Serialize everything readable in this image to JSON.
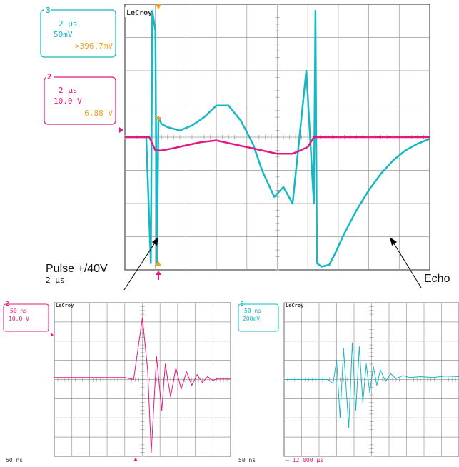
{
  "colors": {
    "cyan": "#15b8c4",
    "magenta": "#e3197e",
    "orange": "#f2a11c",
    "grid": "#9a9a9a",
    "frame": "#4a4a4a"
  },
  "scope": {
    "brand": "LeCroy",
    "ch3_box": {
      "channel": "3",
      "timebase": "2 μs",
      "vdiv": "50mV",
      "value": ">396.7mV"
    },
    "ch2_box": {
      "channel": "2",
      "timebase": "2 μs",
      "vdiv": "10.0 V",
      "value": "6.88 V"
    },
    "timebase_label": "2 μs"
  },
  "annotations": {
    "pulse": "Pulse +/40V",
    "echo": "Echo"
  },
  "zoom_left": {
    "brand": "LeCroy",
    "channel": "2",
    "timebase": "50 ns",
    "vdiv": "10.0 V",
    "bottom_label": "50 ns"
  },
  "zoom_right": {
    "brand": "LeCroy",
    "channel": "3",
    "timebase": "50 ns",
    "vdiv": "200mV",
    "bottom_label": "50 ns",
    "offset_label": "⟵ 12.000 μs"
  },
  "chart_data": [
    {
      "type": "line",
      "xlim": [
        -1,
        9
      ],
      "ylim": [
        -4,
        4
      ],
      "series": [
        {
          "color": "#15b8c4",
          "x": [
            -1.0,
            -0.3,
            -0.15,
            -0.1,
            0.0,
            0.05,
            0.1,
            0.2,
            0.4,
            0.8,
            1.2,
            1.6,
            2.0,
            2.4,
            2.8,
            3.2,
            3.5,
            3.9,
            4.2,
            4.5,
            4.95,
            5.2,
            5.25,
            5.3,
            5.45,
            5.7,
            5.9,
            6.2,
            6.6,
            7.0,
            7.4,
            7.8,
            8.2,
            8.6,
            9.0
          ],
          "y": [
            0.0,
            0.0,
            -3.8,
            3.8,
            3.2,
            -3.8,
            0.6,
            0.4,
            0.3,
            0.2,
            0.35,
            0.6,
            0.95,
            0.95,
            0.5,
            -0.2,
            -1.0,
            -1.8,
            -1.5,
            -2.0,
            2.0,
            -2.0,
            3.8,
            -3.8,
            -3.9,
            -3.85,
            -3.5,
            -2.9,
            -2.2,
            -1.6,
            -1.1,
            -0.7,
            -0.4,
            -0.2,
            -0.05
          ]
        },
        {
          "color": "#e3197e",
          "x": [
            -1.0,
            -0.2,
            0.0,
            0.2,
            0.5,
            1.0,
            1.5,
            2.0,
            2.5,
            3.0,
            3.5,
            4.0,
            4.5,
            5.0,
            5.2,
            5.6,
            6.0,
            7.0,
            8.0,
            9.0
          ],
          "y": [
            0.0,
            0.0,
            -0.4,
            -0.4,
            -0.35,
            -0.25,
            -0.15,
            -0.1,
            -0.2,
            -0.3,
            -0.4,
            -0.5,
            -0.5,
            -0.3,
            0.0,
            0.0,
            0.0,
            0.0,
            0.0,
            0.0
          ]
        }
      ]
    },
    {
      "type": "line",
      "xlim": [
        -5,
        5
      ],
      "ylim": [
        -4,
        4
      ],
      "series": [
        {
          "color": "#e3197e",
          "x": [
            -5.0,
            -1.0,
            -0.5,
            0.0,
            0.3,
            0.5,
            0.8,
            1.1,
            1.3,
            1.6,
            1.9,
            2.2,
            2.5,
            2.8,
            3.1,
            3.4,
            3.7,
            4.0,
            4.3,
            5.0
          ],
          "y": [
            0.1,
            0.1,
            0.0,
            3.2,
            0.5,
            -3.8,
            1.2,
            -1.6,
            0.8,
            -0.9,
            0.6,
            -0.5,
            0.4,
            -0.3,
            0.25,
            -0.15,
            0.15,
            -0.05,
            0.05,
            0.05
          ]
        }
      ]
    },
    {
      "type": "line",
      "xlim": [
        -5,
        5
      ],
      "ylim": [
        -4,
        4
      ],
      "series": [
        {
          "color": "#15b8c4",
          "x": [
            -5.0,
            -2.5,
            -2.2,
            -2.0,
            -1.8,
            -1.6,
            -1.3,
            -1.1,
            -0.9,
            -0.7,
            -0.5,
            -0.3,
            -0.1,
            0.1,
            0.3,
            0.5,
            0.8,
            1.1,
            1.4,
            1.8,
            2.2,
            2.8,
            3.5,
            4.2,
            5.0
          ],
          "y": [
            0.0,
            0.0,
            -0.2,
            1.0,
            -2.0,
            1.6,
            -2.5,
            1.9,
            -1.6,
            1.7,
            -1.2,
            0.8,
            -0.7,
            0.7,
            -0.3,
            0.5,
            -0.1,
            0.3,
            0.05,
            0.2,
            0.1,
            0.15,
            0.1,
            0.18,
            0.15
          ]
        }
      ]
    }
  ]
}
